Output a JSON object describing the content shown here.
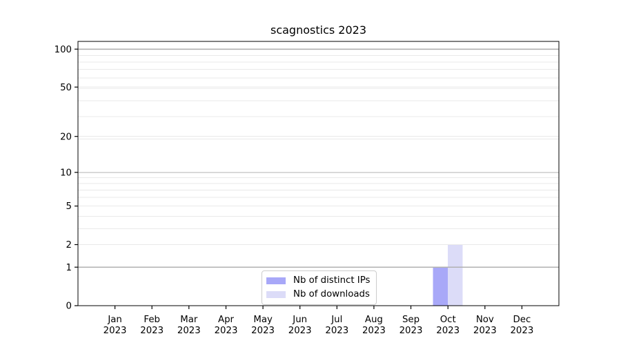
{
  "chart_data": {
    "type": "bar",
    "title": "scagnostics 2023",
    "categories": [
      "Jan",
      "Feb",
      "Mar",
      "Apr",
      "May",
      "Jun",
      "Jul",
      "Aug",
      "Sep",
      "Oct",
      "Nov",
      "Dec"
    ],
    "category_year": "2023",
    "series": [
      {
        "name": "Nb of distinct IPs",
        "color": "#a8a8f8",
        "values": [
          0,
          0,
          0,
          0,
          0,
          0,
          0,
          0,
          0,
          1,
          0,
          0
        ]
      },
      {
        "name": "Nb of downloads",
        "color": "#dcdcf8",
        "values": [
          0,
          0,
          0,
          0,
          0,
          0,
          0,
          0,
          0,
          2,
          0,
          0
        ]
      }
    ],
    "yscale": "log1p",
    "yticks": [
      0,
      1,
      2,
      5,
      10,
      20,
      50,
      100
    ],
    "ylim": [
      0,
      115
    ],
    "xlabel": "",
    "ylabel": "",
    "grid": {
      "major_values": [
        1,
        10,
        100
      ],
      "major_color": "#b0b0b0",
      "minor_color": "#e9e9e9"
    },
    "legend_position": "lower center",
    "spine_color": "#000000"
  }
}
